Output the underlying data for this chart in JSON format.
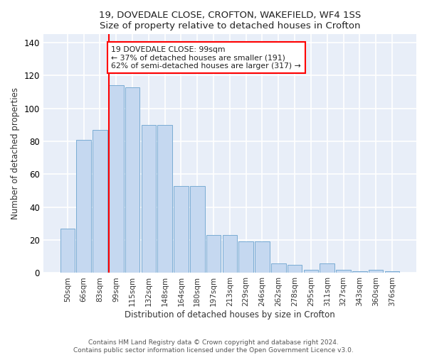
{
  "title1": "19, DOVEDALE CLOSE, CROFTON, WAKEFIELD, WF4 1SS",
  "title2": "Size of property relative to detached houses in Crofton",
  "xlabel": "Distribution of detached houses by size in Crofton",
  "ylabel": "Number of detached properties",
  "categories": [
    "50sqm",
    "66sqm",
    "83sqm",
    "99sqm",
    "115sqm",
    "132sqm",
    "148sqm",
    "164sqm",
    "180sqm",
    "197sqm",
    "213sqm",
    "229sqm",
    "246sqm",
    "262sqm",
    "278sqm",
    "295sqm",
    "311sqm",
    "327sqm",
    "343sqm",
    "360sqm",
    "376sqm"
  ],
  "values": [
    27,
    81,
    87,
    114,
    113,
    90,
    90,
    53,
    53,
    23,
    23,
    19,
    19,
    6,
    5,
    2,
    6,
    2,
    1,
    2,
    1
  ],
  "bar_color": "#c5d8f0",
  "bar_edge_color": "#7aacd4",
  "red_line_index": 3,
  "annotation_text": "19 DOVEDALE CLOSE: 99sqm\n← 37% of detached houses are smaller (191)\n62% of semi-detached houses are larger (317) →",
  "annotation_box_color": "white",
  "annotation_box_edge_color": "red",
  "footer": "Contains HM Land Registry data © Crown copyright and database right 2024.\nContains public sector information licensed under the Open Government Licence v3.0.",
  "ylim": [
    0,
    145
  ],
  "background_color": "#e8eef8",
  "grid_color": "white"
}
